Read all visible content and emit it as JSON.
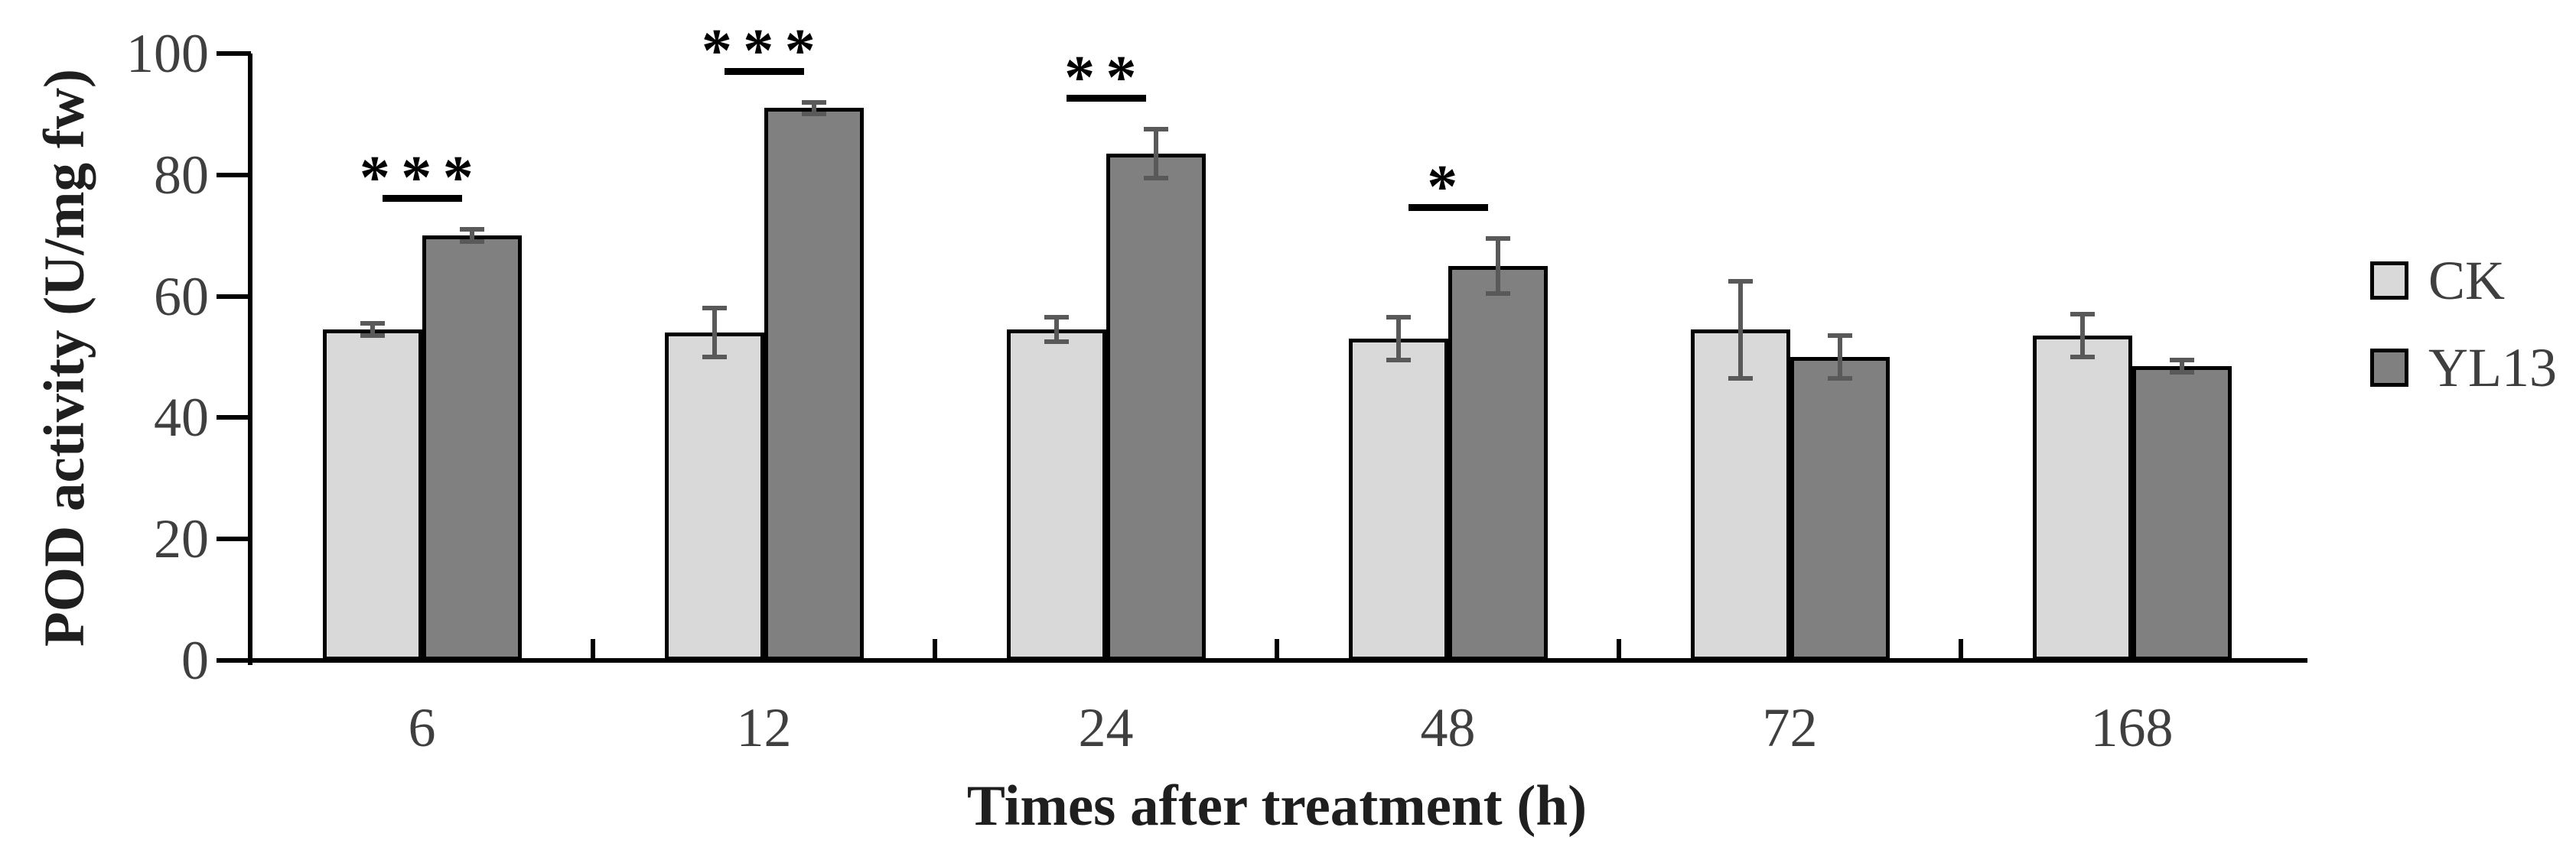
{
  "figure": {
    "background": "#ffffff",
    "axis_color": "#000000",
    "error_bar_color": "#595959",
    "text_color": "#3f3f3f",
    "title_color": "#1f1f1f"
  },
  "chart_data": {
    "type": "bar",
    "title": "",
    "xlabel": "Times after treatment (h)",
    "ylabel": "POD activity (U/mg fw)",
    "categories": [
      "6",
      "12",
      "24",
      "48",
      "72",
      "168"
    ],
    "series": [
      {
        "name": "CK",
        "color": "#d9d9d9",
        "values": [
          54.5,
          54,
          54.5,
          53,
          54.5,
          53.5
        ],
        "errors": [
          1,
          4,
          2,
          3.5,
          8,
          3.5
        ]
      },
      {
        "name": "YL13",
        "color": "#808080",
        "values": [
          70,
          91,
          83.5,
          65,
          50,
          48.5
        ],
        "errors": [
          1,
          1,
          4,
          4.5,
          3.5,
          1
        ]
      }
    ],
    "significance": [
      "***",
      "***",
      "**",
      "*",
      "",
      ""
    ],
    "ylim": [
      0,
      100
    ],
    "yticks": [
      0,
      20,
      40,
      60,
      80,
      100
    ],
    "grid": "off",
    "legend_position": "right"
  }
}
